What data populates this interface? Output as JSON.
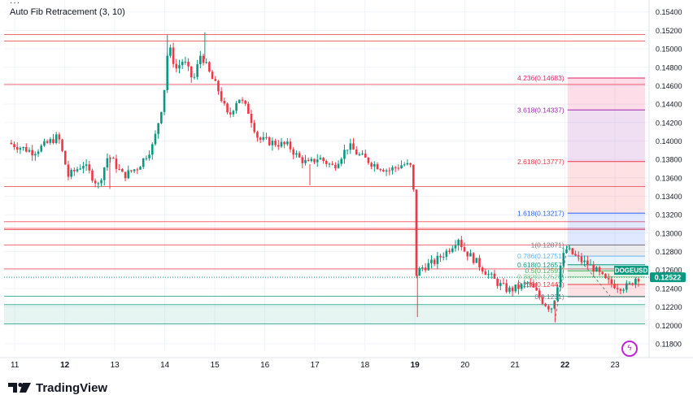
{
  "header": {
    "menu_dots": "···",
    "indicator_label": "Auto Fib Retracement (3, 10)"
  },
  "footer": {
    "brand": "TradingView"
  },
  "colors": {
    "up": "#089981",
    "down": "#f23645",
    "grid": "#f0f3fa",
    "axis_text": "#131722",
    "current_price_bg": "#089981"
  },
  "chart_data": {
    "type": "candlestick",
    "symbol": "DOGEUSD",
    "current_price": 0.12522,
    "y_range": [
      0.1172,
      0.1553
    ],
    "y_ticks": [
      0.154,
      0.152,
      0.15,
      0.148,
      0.146,
      0.144,
      0.142,
      0.14,
      0.138,
      0.136,
      0.134,
      0.132,
      0.13,
      0.128,
      0.126,
      0.124,
      0.122,
      0.12,
      0.118
    ],
    "x_ticks": [
      {
        "label": "11",
        "t": 0.1,
        "bold": false
      },
      {
        "label": "12",
        "t": 1.1,
        "bold": true
      },
      {
        "label": "13",
        "t": 2.1,
        "bold": false
      },
      {
        "label": "14",
        "t": 3.1,
        "bold": false
      },
      {
        "label": "15",
        "t": 4.1,
        "bold": false
      },
      {
        "label": "16",
        "t": 5.1,
        "bold": false
      },
      {
        "label": "17",
        "t": 6.1,
        "bold": false
      },
      {
        "label": "18",
        "t": 7.1,
        "bold": false
      },
      {
        "label": "19",
        "t": 8.1,
        "bold": true
      },
      {
        "label": "20",
        "t": 9.1,
        "bold": false
      },
      {
        "label": "21",
        "t": 10.1,
        "bold": false
      },
      {
        "label": "22",
        "t": 11.1,
        "bold": true
      },
      {
        "label": "23",
        "t": 12.1,
        "bold": false
      }
    ],
    "price_path": [
      [
        0.0,
        0.1398
      ],
      [
        0.5,
        0.1388
      ],
      [
        1.0,
        0.1405
      ],
      [
        1.2,
        0.1362
      ],
      [
        1.5,
        0.1375
      ],
      [
        1.8,
        0.1352
      ],
      [
        2.0,
        0.1385
      ],
      [
        2.3,
        0.1362
      ],
      [
        2.6,
        0.1372
      ],
      [
        2.9,
        0.1396
      ],
      [
        3.1,
        0.1445
      ],
      [
        3.2,
        0.1505
      ],
      [
        3.35,
        0.1478
      ],
      [
        3.5,
        0.1488
      ],
      [
        3.7,
        0.1465
      ],
      [
        3.85,
        0.1495
      ],
      [
        4.05,
        0.147
      ],
      [
        4.2,
        0.1455
      ],
      [
        4.4,
        0.1425
      ],
      [
        4.6,
        0.1448
      ],
      [
        4.8,
        0.1432
      ],
      [
        5.0,
        0.1402
      ],
      [
        5.3,
        0.1398
      ],
      [
        5.6,
        0.1395
      ],
      [
        5.8,
        0.1382
      ],
      [
        6.0,
        0.1375
      ],
      [
        6.2,
        0.1382
      ],
      [
        6.5,
        0.1372
      ],
      [
        6.8,
        0.1395
      ],
      [
        7.0,
        0.1385
      ],
      [
        7.3,
        0.1375
      ],
      [
        7.6,
        0.1368
      ],
      [
        7.9,
        0.1375
      ],
      [
        8.05,
        0.1372
      ],
      [
        8.1,
        0.1345
      ],
      [
        8.15,
        0.1255
      ],
      [
        8.25,
        0.1262
      ],
      [
        8.5,
        0.1268
      ],
      [
        8.8,
        0.1282
      ],
      [
        9.0,
        0.1295
      ],
      [
        9.1,
        0.1282
      ],
      [
        9.3,
        0.1272
      ],
      [
        9.6,
        0.1255
      ],
      [
        9.8,
        0.1245
      ],
      [
        10.0,
        0.1238
      ],
      [
        10.2,
        0.1241
      ],
      [
        10.4,
        0.1246
      ],
      [
        10.55,
        0.1236
      ],
      [
        10.7,
        0.1225
      ],
      [
        10.85,
        0.1218
      ],
      [
        10.95,
        0.1235
      ],
      [
        11.05,
        0.1268
      ],
      [
        11.15,
        0.1283
      ],
      [
        11.4,
        0.1272
      ],
      [
        11.7,
        0.1262
      ],
      [
        11.95,
        0.1248
      ],
      [
        12.2,
        0.1242
      ],
      [
        12.4,
        0.1242
      ],
      [
        12.55,
        0.1252
      ]
    ],
    "long_wicks": [
      {
        "t": 3.15,
        "high": 0.1515
      },
      {
        "t": 3.9,
        "high": 0.1518
      },
      {
        "t": 8.15,
        "low": 0.1209
      },
      {
        "t": 10.9,
        "low": 0.1203
      },
      {
        "t": 2.0,
        "low": 0.1348
      },
      {
        "t": 6.0,
        "low": 0.1352
      }
    ],
    "fib_levels": [
      {
        "ratio": "4.236",
        "price": 0.14683,
        "label": "4.236(0.14683)",
        "color": "#e91e63"
      },
      {
        "ratio": "3.618",
        "price": 0.14337,
        "label": "3.618(0.14337)",
        "color": "#9c27b0"
      },
      {
        "ratio": "2.618",
        "price": 0.13777,
        "label": "2.618(0.13777)",
        "color": "#f23645"
      },
      {
        "ratio": "1.618",
        "price": 0.13217,
        "label": "1.618(0.13217)",
        "color": "#2962ff"
      },
      {
        "ratio": "1",
        "price": 0.12871,
        "label": "1(0.12871)",
        "color": "#787b86"
      },
      {
        "ratio": "0.786",
        "price": 0.12751,
        "label": "0.786(0.12751)",
        "color": "#64b5f6"
      },
      {
        "ratio": "0.618",
        "price": 0.12657,
        "label": "0.618(0.12657)",
        "color": "#089981"
      },
      {
        "ratio": "0.5",
        "price": 0.12591,
        "label": "0.5(0.12591)",
        "color": "#4caf50"
      },
      {
        "ratio": "0.382",
        "price": 0.12525,
        "label": "0.382(0.12525)",
        "color": "#81c784"
      },
      {
        "ratio": "0.236",
        "price": 0.12443,
        "label": "0.236(0.12443)",
        "color": "#f23645"
      },
      {
        "ratio": "0",
        "price": 0.1231,
        "label": "0(0.1231)",
        "color": "#787b86"
      }
    ],
    "horizontal_lines": [
      {
        "price": 0.15155,
        "color": "#f23645"
      },
      {
        "price": 0.15085,
        "color": "#f23645"
      },
      {
        "price": 0.14614,
        "color": "#f23645"
      },
      {
        "price": 0.13506,
        "color": "#f23645"
      },
      {
        "price": 0.13125,
        "color": "#f23645"
      },
      {
        "price": 0.13052,
        "color": "#f23645"
      },
      {
        "price": 0.13038,
        "color": "#f23645"
      },
      {
        "price": 0.12872,
        "color": "#f23645"
      },
      {
        "price": 0.12612,
        "color": "#f23645"
      },
      {
        "price": 0.12315,
        "color": "#089981"
      },
      {
        "price": 0.12225,
        "color": "#089981"
      },
      {
        "price": 0.12015,
        "color": "#089981"
      }
    ],
    "support_zone": [
      0.12015,
      0.12225
    ]
  }
}
